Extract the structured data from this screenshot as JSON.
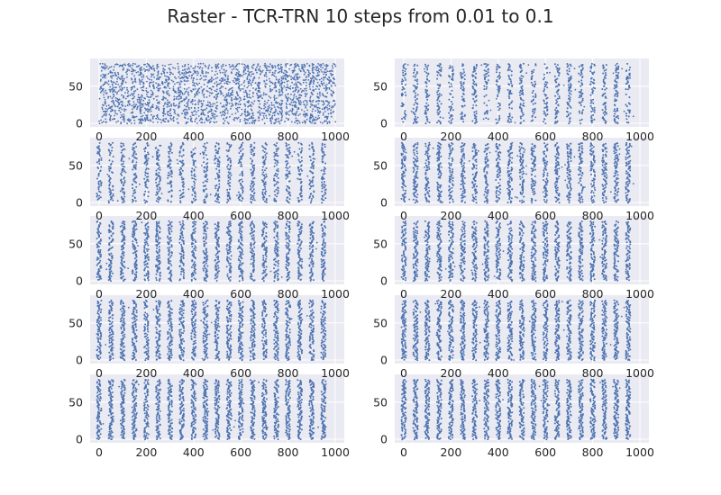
{
  "figure": {
    "title": "Raster - TCR-TRN 10 steps from 0.01 to 0.1"
  },
  "colors": {
    "axes_background": "#EAEAF2",
    "grid": "#FFFFFF",
    "spike": "#4C72B0",
    "text": "#262626"
  },
  "chart_data": [
    {
      "type": "scatter",
      "subplot": 1,
      "row": 1,
      "col": 1,
      "pattern": "irregular",
      "n_bursts": 0,
      "density": 0.22,
      "xlim": [
        0,
        1000
      ],
      "ylim": [
        0,
        80
      ],
      "xticks": [
        0,
        200,
        400,
        600,
        800,
        1000
      ],
      "yticks": [
        0,
        50
      ],
      "grid": true
    },
    {
      "type": "scatter",
      "subplot": 2,
      "row": 1,
      "col": 2,
      "pattern": "bursts",
      "n_bursts": 20,
      "density": 0.55,
      "xlim": [
        0,
        1000
      ],
      "ylim": [
        0,
        80
      ],
      "xticks": [
        0,
        200,
        400,
        600,
        800,
        1000
      ],
      "yticks": [
        0,
        50
      ],
      "grid": true
    },
    {
      "type": "scatter",
      "subplot": 3,
      "row": 2,
      "col": 1,
      "pattern": "bursts",
      "n_bursts": 20,
      "density": 0.65,
      "xlim": [
        0,
        1000
      ],
      "ylim": [
        0,
        80
      ],
      "xticks": [
        0,
        200,
        400,
        600,
        800,
        1000
      ],
      "yticks": [
        0,
        50
      ],
      "grid": true
    },
    {
      "type": "scatter",
      "subplot": 4,
      "row": 2,
      "col": 2,
      "pattern": "bursts",
      "n_bursts": 20,
      "density": 0.8,
      "xlim": [
        0,
        1000
      ],
      "ylim": [
        0,
        80
      ],
      "xticks": [
        0,
        200,
        400,
        600,
        800,
        1000
      ],
      "yticks": [
        0,
        50
      ],
      "grid": true
    },
    {
      "type": "scatter",
      "subplot": 5,
      "row": 3,
      "col": 1,
      "pattern": "bursts",
      "n_bursts": 20,
      "density": 0.85,
      "xlim": [
        0,
        1000
      ],
      "ylim": [
        0,
        80
      ],
      "xticks": [
        0,
        200,
        400,
        600,
        800,
        1000
      ],
      "yticks": [
        0,
        50
      ],
      "grid": true
    },
    {
      "type": "scatter",
      "subplot": 6,
      "row": 3,
      "col": 2,
      "pattern": "bursts",
      "n_bursts": 20,
      "density": 0.88,
      "xlim": [
        0,
        1000
      ],
      "ylim": [
        0,
        80
      ],
      "xticks": [
        0,
        200,
        400,
        600,
        800,
        1000
      ],
      "yticks": [
        0,
        50
      ],
      "grid": true
    },
    {
      "type": "scatter",
      "subplot": 7,
      "row": 4,
      "col": 1,
      "pattern": "bursts",
      "n_bursts": 20,
      "density": 0.92,
      "xlim": [
        0,
        1000
      ],
      "ylim": [
        0,
        80
      ],
      "xticks": [
        0,
        200,
        400,
        600,
        800,
        1000
      ],
      "yticks": [
        0,
        50
      ],
      "grid": true
    },
    {
      "type": "scatter",
      "subplot": 8,
      "row": 4,
      "col": 2,
      "pattern": "bursts",
      "n_bursts": 20,
      "density": 0.94,
      "xlim": [
        0,
        1000
      ],
      "ylim": [
        0,
        80
      ],
      "xticks": [
        0,
        200,
        400,
        600,
        800,
        1000
      ],
      "yticks": [
        0,
        50
      ],
      "grid": true
    },
    {
      "type": "scatter",
      "subplot": 9,
      "row": 5,
      "col": 1,
      "pattern": "bursts",
      "n_bursts": 20,
      "density": 0.96,
      "xlim": [
        0,
        1000
      ],
      "ylim": [
        0,
        80
      ],
      "xticks": [
        0,
        200,
        400,
        600,
        800,
        1000
      ],
      "yticks": [
        0,
        50
      ],
      "grid": true
    },
    {
      "type": "scatter",
      "subplot": 10,
      "row": 5,
      "col": 2,
      "pattern": "bursts",
      "n_bursts": 20,
      "density": 0.98,
      "xlim": [
        0,
        1000
      ],
      "ylim": [
        0,
        80
      ],
      "xticks": [
        0,
        200,
        400,
        600,
        800,
        1000
      ],
      "yticks": [
        0,
        50
      ],
      "grid": true
    }
  ]
}
